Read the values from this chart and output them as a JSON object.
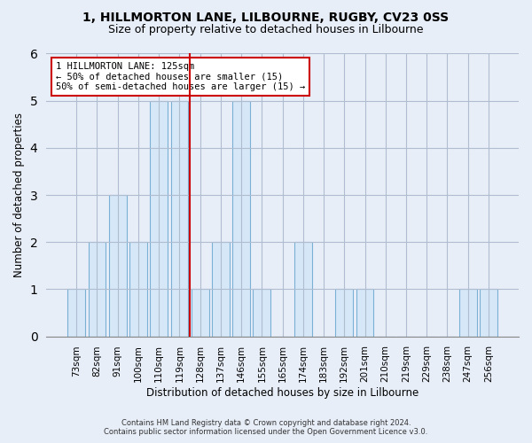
{
  "title1": "1, HILLMORTON LANE, LILBOURNE, RUGBY, CV23 0SS",
  "title2": "Size of property relative to detached houses in Lilbourne",
  "xlabel": "Distribution of detached houses by size in Lilbourne",
  "ylabel": "Number of detached properties",
  "categories": [
    "73sqm",
    "82sqm",
    "91sqm",
    "100sqm",
    "110sqm",
    "119sqm",
    "128sqm",
    "137sqm",
    "146sqm",
    "155sqm",
    "165sqm",
    "174sqm",
    "183sqm",
    "192sqm",
    "201sqm",
    "210sqm",
    "219sqm",
    "229sqm",
    "238sqm",
    "247sqm",
    "256sqm"
  ],
  "values": [
    1,
    2,
    3,
    2,
    5,
    5,
    1,
    2,
    5,
    1,
    0,
    2,
    0,
    1,
    1,
    0,
    0,
    0,
    0,
    1,
    1
  ],
  "bar_color": "#d6e8f7",
  "bar_edge_color": "#7ab0d4",
  "vline_x": 5.5,
  "annotation_text": "1 HILLMORTON LANE: 125sqm\n← 50% of detached houses are smaller (15)\n50% of semi-detached houses are larger (15) →",
  "ylim": [
    0,
    6
  ],
  "yticks": [
    0,
    1,
    2,
    3,
    4,
    5,
    6
  ],
  "vline_color": "#cc0000",
  "annotation_box_edge_color": "#cc0000",
  "footer1": "Contains HM Land Registry data © Crown copyright and database right 2024.",
  "footer2": "Contains public sector information licensed under the Open Government Licence v3.0.",
  "bg_color": "#e8eef8",
  "plot_bg_color": "#e8eef8"
}
